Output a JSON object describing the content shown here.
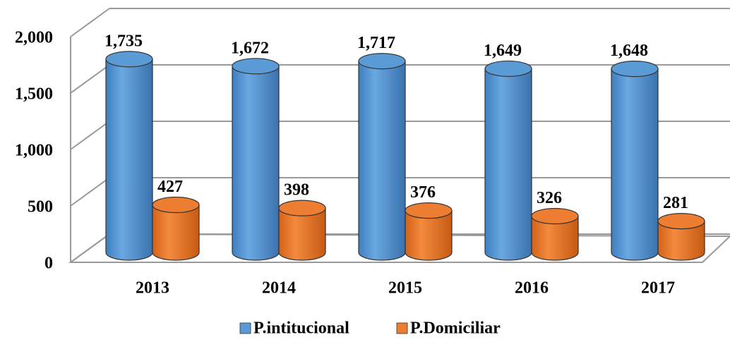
{
  "chart_data": {
    "type": "bar3d",
    "categories": [
      "2013",
      "2014",
      "2015",
      "2016",
      "2017"
    ],
    "series": [
      {
        "name": "P.intitucional",
        "color": "#5b9bd5",
        "values": [
          1735,
          1672,
          1717,
          1649,
          1648
        ],
        "value_labels": [
          "1,735",
          "1,672",
          "1,717",
          "1,649",
          "1,648"
        ]
      },
      {
        "name": "P.Domiciliar",
        "color": "#ed7d31",
        "values": [
          427,
          398,
          376,
          326,
          281
        ],
        "value_labels": [
          "427",
          "398",
          "376",
          "326",
          "281"
        ]
      }
    ],
    "ylim": [
      0,
      2000
    ],
    "yticks": [
      0,
      500,
      {
        "value": 1000,
        "label": "1,000"
      },
      {
        "value": 1500,
        "label": "1,500"
      },
      {
        "value": 2000,
        "label": "2,000"
      }
    ],
    "grid": true,
    "legend": "bottom"
  }
}
